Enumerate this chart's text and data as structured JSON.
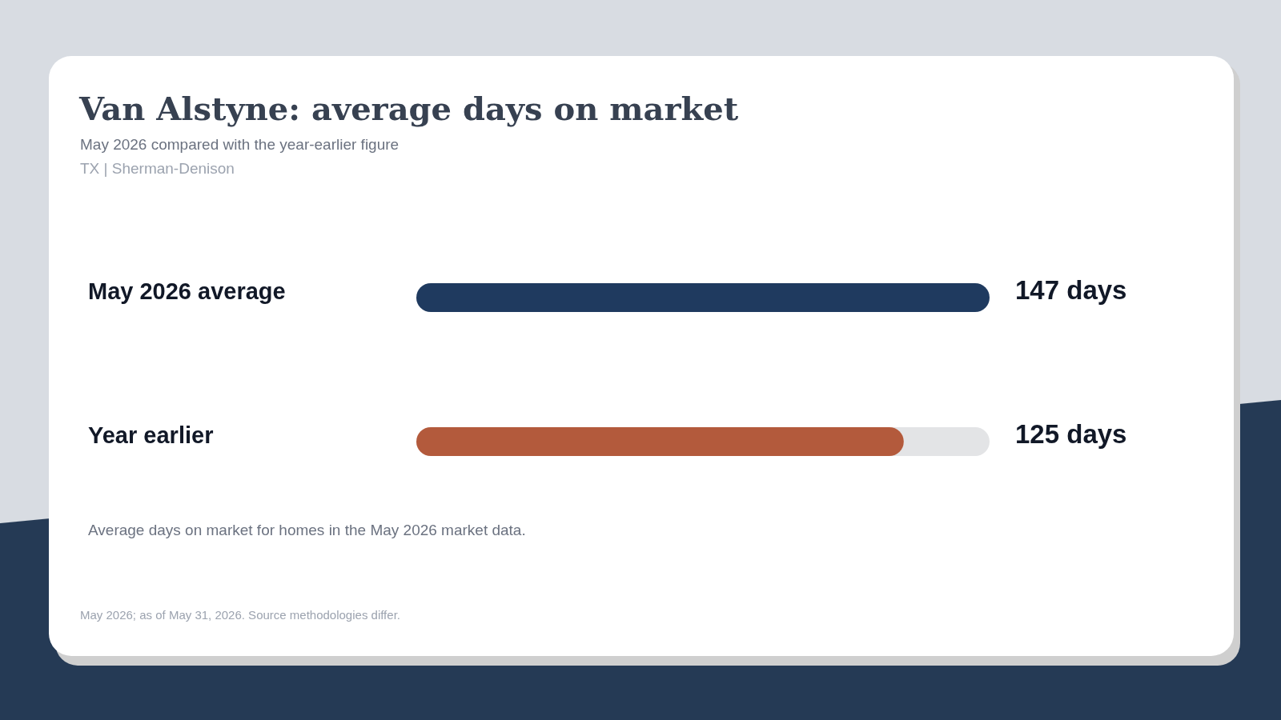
{
  "chart_data": {
    "type": "bar",
    "orientation": "horizontal",
    "title": "Van Alstyne: average days on market",
    "subtitle": "May 2026 compared with the year-earlier figure",
    "annotations": [
      "TX | Sherman-Denison",
      "Average days on market for homes in the May 2026 market data.",
      "May 2026; as of May 31, 2026. Source methodologies differ."
    ],
    "categories": [
      "May 2026 average",
      "Year earlier"
    ],
    "values": [
      147,
      125
    ],
    "colors": [
      "#1f3a5f",
      "#b35a3c"
    ],
    "value_labels": [
      "147 days",
      "125 days"
    ]
  }
}
